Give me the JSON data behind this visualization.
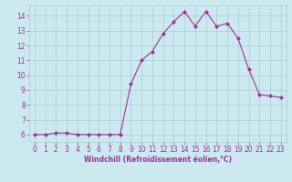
{
  "x": [
    0,
    1,
    2,
    3,
    4,
    5,
    6,
    7,
    8,
    9,
    10,
    11,
    12,
    13,
    14,
    15,
    16,
    17,
    18,
    19,
    20,
    21,
    22,
    23
  ],
  "y": [
    6.0,
    6.0,
    6.1,
    6.1,
    6.0,
    6.0,
    6.0,
    6.0,
    6.0,
    9.4,
    11.0,
    11.6,
    12.8,
    13.6,
    14.3,
    13.3,
    14.3,
    13.3,
    13.5,
    12.5,
    10.4,
    8.7,
    8.6,
    8.5
  ],
  "line_color": "#993399",
  "marker": "D",
  "marker_size": 2,
  "bg_color": "#cce9f0",
  "grid_color": "#aaccd4",
  "xlabel": "Windchill (Refroidissement éolien,°C)",
  "xlabel_color": "#993399",
  "tick_color": "#993399",
  "label_color": "#993399",
  "ylim": [
    5.5,
    14.7
  ],
  "xlim": [
    -0.5,
    23.5
  ],
  "yticks": [
    6,
    7,
    8,
    9,
    10,
    11,
    12,
    13,
    14
  ],
  "xticks": [
    0,
    1,
    2,
    3,
    4,
    5,
    6,
    7,
    8,
    9,
    10,
    11,
    12,
    13,
    14,
    15,
    16,
    17,
    18,
    19,
    20,
    21,
    22,
    23
  ],
  "xlabel_fontsize": 5.5,
  "tick_labelsize": 5.5
}
